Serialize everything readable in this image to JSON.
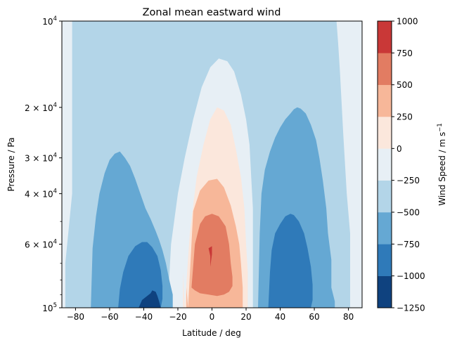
{
  "chart_data": {
    "type": "contour",
    "title": "Zonal mean eastward wind",
    "xlabel": "Latitude / deg",
    "ylabel": "Pressure / Pa",
    "xlim": [
      -88,
      88
    ],
    "ylim": [
      100000,
      10000
    ],
    "yscale": "log",
    "x_ticks": [
      -80,
      -60,
      -40,
      -20,
      0,
      20,
      40,
      60,
      80
    ],
    "x_tick_labels": [
      "−80",
      "−60",
      "−40",
      "−20",
      "0",
      "20",
      "40",
      "60",
      "80"
    ],
    "y_ticks": [
      {
        "value": 10000,
        "base": "10",
        "exp": "4"
      },
      {
        "value": 20000,
        "mant": "2",
        "base": "10",
        "exp": "4"
      },
      {
        "value": 30000,
        "mant": "3",
        "base": "10",
        "exp": "4"
      },
      {
        "value": 40000,
        "mant": "4",
        "base": "10",
        "exp": "4"
      },
      {
        "value": 60000,
        "mant": "6",
        "base": "10",
        "exp": "4"
      },
      {
        "value": 100000,
        "base": "10",
        "exp": "5"
      }
    ],
    "y_times": "×",
    "y_minor_ticks": [
      50000,
      70000,
      80000,
      90000
    ],
    "colorbar": {
      "label": "Wind Speed / m s",
      "label_sup": "−1",
      "levels": [
        -1250,
        -1000,
        -750,
        -500,
        -250,
        0,
        250,
        500,
        750,
        1000
      ],
      "tick_labels": [
        "−1250",
        "−1000",
        "−750",
        "−500",
        "−250",
        "0",
        "250",
        "500",
        "750",
        "1000"
      ],
      "colors": [
        "#0f427f",
        "#2f7ab9",
        "#65a8d3",
        "#b3d5e8",
        "#e7eff5",
        "#fbe7dc",
        "#f7b799",
        "#e27c62",
        "#c93837"
      ]
    },
    "background_level": "-500 to -250",
    "regions": [
      {
        "level": "-250 to 0",
        "lat": [
          -90,
          -82,
          -82,
          -86,
          -86,
          -90
        ],
        "p": [
          10000,
          10000,
          40000,
          70000,
          100000,
          100000
        ]
      },
      {
        "level": "-250 to 0",
        "lat": [
          73,
          90,
          90,
          81,
          81,
          79,
          77,
          75,
          74
        ],
        "p": [
          10000,
          10000,
          100000,
          100000,
          55000,
          40000,
          25000,
          15000,
          12000
        ]
      },
      {
        "level": "-250 to 0",
        "lat": [
          -26,
          -24,
          -20,
          -16,
          -11,
          -6,
          -1,
          4,
          9,
          13,
          17,
          20,
          22,
          23,
          24,
          24,
          24,
          -26,
          -26
        ],
        "p": [
          100000,
          60000,
          40000,
          30000,
          22000,
          17000,
          14500,
          13500,
          13800,
          15000,
          18000,
          22000,
          27000,
          35000,
          45000,
          60000,
          100000,
          100000,
          100000
        ]
      },
      {
        "level": "0 to 250",
        "lat": [
          -16,
          -13,
          -9,
          -5,
          -1,
          3,
          7,
          11,
          14,
          17,
          19,
          20,
          21,
          21,
          21,
          -17,
          -17,
          -16
        ],
        "p": [
          100000,
          55000,
          35000,
          27000,
          22000,
          20000,
          20500,
          23000,
          28000,
          35000,
          45000,
          60000,
          75000,
          85000,
          100000,
          100000,
          75000,
          100000
        ]
      },
      {
        "level": "250 to 500",
        "lat": [
          -14,
          -11,
          -7,
          -2,
          3,
          7,
          11,
          14,
          16,
          17,
          18,
          18,
          -15,
          -15
        ],
        "p": [
          100000,
          46000,
          39000,
          36000,
          35500,
          38000,
          44000,
          52000,
          60000,
          70000,
          85000,
          100000,
          100000,
          85000
        ]
      },
      {
        "level": "500 to 750",
        "lat": [
          -12,
          -10,
          -7,
          -4,
          0,
          4,
          8,
          10,
          11,
          12,
          12,
          10,
          7,
          3,
          -2,
          -7,
          -10,
          -12
        ],
        "p": [
          85000,
          60000,
          51000,
          48000,
          47000,
          48000,
          52000,
          60000,
          70000,
          78000,
          84000,
          88000,
          90000,
          91000,
          90000,
          89000,
          87000,
          85000
        ]
      },
      {
        "level": "750 to 1000",
        "lat": [
          -2,
          0,
          0,
          -1,
          -1,
          -2
        ],
        "p": [
          62000,
          61000,
          65000,
          72000,
          66000,
          62000
        ]
      },
      {
        "level": "-750 to -500",
        "lat": [
          -71,
          -70,
          -68,
          -66,
          -63,
          -60,
          -57,
          -54,
          -51,
          -48,
          -45,
          -42,
          -39,
          -36,
          -33,
          -31,
          -29,
          -27,
          -25,
          -23,
          -23,
          -71
        ],
        "p": [
          100000,
          62000,
          48000,
          40000,
          34000,
          30500,
          29000,
          28500,
          30000,
          32000,
          35500,
          40000,
          45000,
          49000,
          54000,
          58000,
          63000,
          70000,
          80000,
          90000,
          100000,
          100000
        ]
      },
      {
        "level": "-750 to -500",
        "lat": [
          27,
          28,
          29,
          31,
          34,
          37,
          40,
          43,
          46,
          48,
          50,
          52,
          55,
          58,
          61,
          63,
          65,
          67,
          68,
          70,
          70,
          72,
          72,
          27
        ],
        "p": [
          100000,
          55000,
          40000,
          33000,
          28500,
          25500,
          23500,
          22000,
          21000,
          20300,
          20000,
          20200,
          21000,
          23000,
          26000,
          30000,
          36000,
          45000,
          55000,
          68000,
          85000,
          95000,
          100000,
          100000
        ]
      },
      {
        "level": "-1000 to -750",
        "lat": [
          -55,
          -54,
          -52,
          -49,
          -45,
          -41,
          -38,
          -35,
          -32,
          -30,
          -29,
          -29,
          -30,
          -55
        ],
        "p": [
          100000,
          86000,
          75000,
          66000,
          61000,
          59000,
          59000,
          61500,
          66000,
          74000,
          84000,
          93000,
          100000,
          100000
        ]
      },
      {
        "level": "-1000 to -750",
        "lat": [
          33,
          34,
          35,
          37,
          40,
          43,
          46,
          48,
          51,
          54,
          56,
          58,
          59,
          59,
          58,
          33
        ],
        "p": [
          100000,
          75000,
          63000,
          55000,
          51000,
          48000,
          47000,
          47500,
          50000,
          55000,
          62000,
          72000,
          83000,
          94000,
          100000,
          100000
        ]
      },
      {
        "level": "-1250 to -1000",
        "lat": [
          -43,
          -41,
          -38,
          -36,
          -35,
          -33,
          -32,
          -31,
          -30,
          -43
        ],
        "p": [
          100000,
          94000,
          91000,
          89000,
          87000,
          88000,
          91000,
          95000,
          100000,
          100000
        ]
      }
    ]
  }
}
